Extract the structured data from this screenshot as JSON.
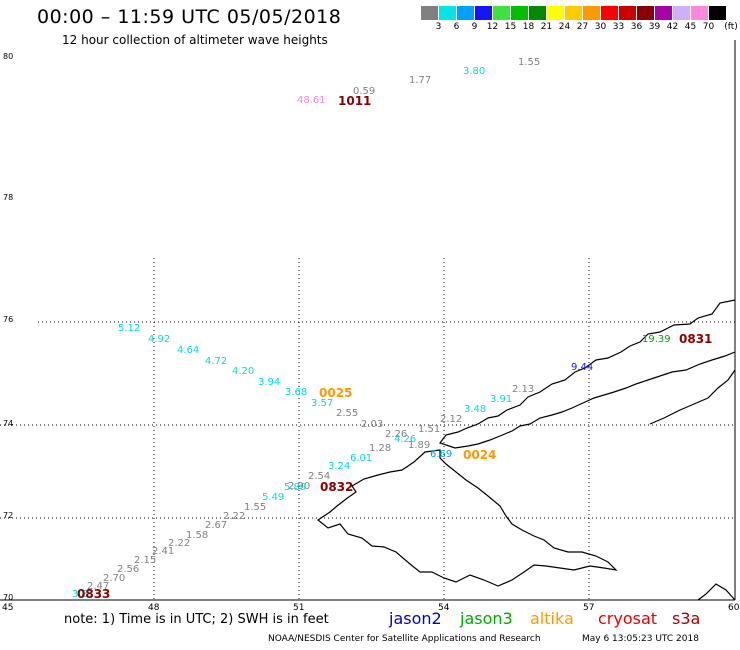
{
  "header": {
    "title": "00:00 – 11:59 UTC 05/05/2018",
    "subtitle": "12 hour collection of altimeter wave heights"
  },
  "legend": {
    "unit": "(ft)",
    "items": [
      {
        "label": "3",
        "color": "#808080"
      },
      {
        "label": "6",
        "color": "#00e6e6"
      },
      {
        "label": "9",
        "color": "#00a0ff"
      },
      {
        "label": "12",
        "color": "#1414ff"
      },
      {
        "label": "15",
        "color": "#40e040"
      },
      {
        "label": "18",
        "color": "#00c000"
      },
      {
        "label": "21",
        "color": "#008800"
      },
      {
        "label": "24",
        "color": "#ffff00"
      },
      {
        "label": "27",
        "color": "#ffcc00"
      },
      {
        "label": "30",
        "color": "#ff9900"
      },
      {
        "label": "33",
        "color": "#ff0000"
      },
      {
        "label": "36",
        "color": "#cc0000"
      },
      {
        "label": "39",
        "color": "#880000"
      },
      {
        "label": "42",
        "color": "#aa00aa"
      },
      {
        "label": "45",
        "color": "#ccb0ff"
      },
      {
        "label": "70",
        "color": "#ff88dd"
      },
      {
        "label": "",
        "color": "#000000"
      }
    ]
  },
  "map": {
    "latitude_labels": [
      "80",
      "78",
      "76",
      "74",
      "72",
      "70"
    ],
    "longitude_labels": [
      "45",
      "48",
      "51",
      "54",
      "57",
      "60"
    ],
    "observations": [
      {
        "text": "48.61",
        "color": "#ee88dd"
      },
      {
        "text": "0.59",
        "color": "#808080"
      },
      {
        "text": "1.77",
        "color": "#808080"
      },
      {
        "text": "3.80",
        "color": "#00dddd"
      },
      {
        "text": "1.55",
        "color": "#808080"
      },
      {
        "text": "5.12",
        "color": "#00dddd"
      },
      {
        "text": "4.92",
        "color": "#00dddd"
      },
      {
        "text": "4.64",
        "color": "#00dddd"
      },
      {
        "text": "4.72",
        "color": "#00dddd"
      },
      {
        "text": "4.20",
        "color": "#00dddd"
      },
      {
        "text": "3.94",
        "color": "#00dddd"
      },
      {
        "text": "3.68",
        "color": "#00dddd"
      },
      {
        "text": "3.57",
        "color": "#00dddd"
      },
      {
        "text": "2.55",
        "color": "#808080"
      },
      {
        "text": "2.03",
        "color": "#808080"
      },
      {
        "text": "2.26",
        "color": "#808080"
      },
      {
        "text": "1.51",
        "color": "#808080"
      },
      {
        "text": "2.12",
        "color": "#808080"
      },
      {
        "text": "3.48",
        "color": "#00dddd"
      },
      {
        "text": "3.91",
        "color": "#00dddd"
      },
      {
        "text": "2.13",
        "color": "#808080"
      },
      {
        "text": "9.44",
        "color": "#1414ff"
      },
      {
        "text": "19.39",
        "color": "#00aa00"
      },
      {
        "text": "4.26",
        "color": "#00dddd"
      },
      {
        "text": "1.89",
        "color": "#808080"
      },
      {
        "text": "1.28",
        "color": "#808080"
      },
      {
        "text": "6.01",
        "color": "#00dddd"
      },
      {
        "text": "6.69",
        "color": "#00a0ff"
      },
      {
        "text": "3.24",
        "color": "#00dddd"
      },
      {
        "text": "2.54",
        "color": "#808080"
      },
      {
        "text": "2.90",
        "color": "#808080"
      },
      {
        "text": "5.89",
        "color": "#00dddd"
      },
      {
        "text": "5.49",
        "color": "#00dddd"
      },
      {
        "text": "1.55",
        "color": "#808080"
      },
      {
        "text": "2.22",
        "color": "#808080"
      },
      {
        "text": "2.67",
        "color": "#808080"
      },
      {
        "text": "1.58",
        "color": "#808080"
      },
      {
        "text": "2.22",
        "color": "#808080"
      },
      {
        "text": "2.41",
        "color": "#808080"
      },
      {
        "text": "2.15",
        "color": "#808080"
      },
      {
        "text": "2.56",
        "color": "#808080"
      },
      {
        "text": "2.70",
        "color": "#808080"
      },
      {
        "text": "2.47",
        "color": "#808080"
      },
      {
        "text": "3.81",
        "color": "#00dddd"
      }
    ],
    "pass_times": [
      {
        "text": "1011",
        "color": "#880000"
      },
      {
        "text": "0025",
        "color": "#ff9900"
      },
      {
        "text": "0831",
        "color": "#880000"
      },
      {
        "text": "0024",
        "color": "#ff9900"
      },
      {
        "text": "0832",
        "color": "#880000"
      },
      {
        "text": "0833",
        "color": "#880000"
      }
    ]
  },
  "note": "note:  1) Time is in UTC;  2) SWH is in feet",
  "satellites": [
    {
      "name": "jason2",
      "color": "#0000cc"
    },
    {
      "name": "jason3",
      "color": "#00aa00"
    },
    {
      "name": "altika",
      "color": "#ff9900"
    },
    {
      "name": "cryosat",
      "color": "#ee0000"
    },
    {
      "name": "s3a",
      "color": "#aa0000"
    }
  ],
  "footer": {
    "credit": "NOAA/NESDIS Center for Satellite Applications and Research",
    "timestamp": "May  6 13:05:23 UTC 2018"
  }
}
